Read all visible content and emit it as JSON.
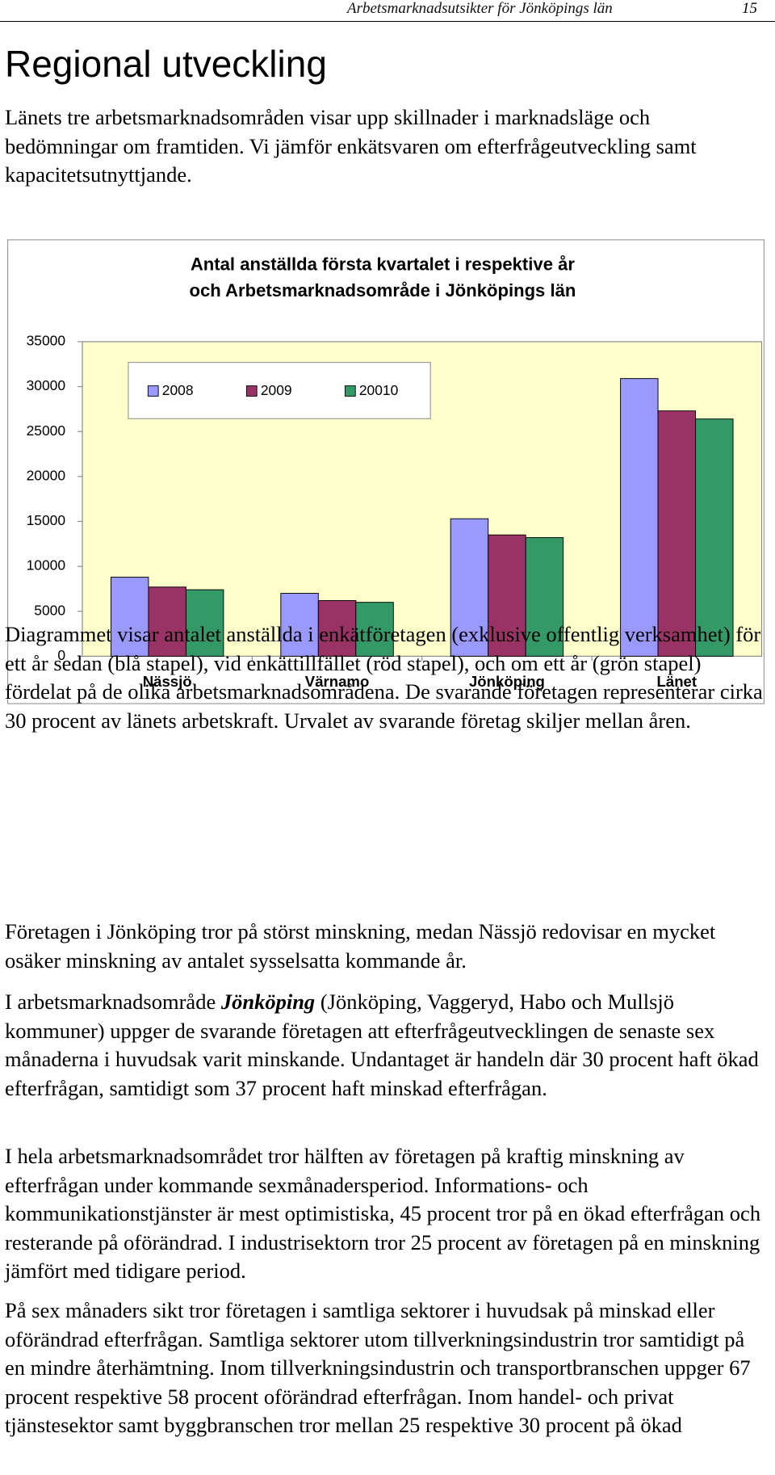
{
  "header": {
    "running_title": "Arbetsmarknadsutsikter för Jönköpings län",
    "page_number": "15"
  },
  "title": "Regional utveckling",
  "intro": "Länets tre arbetsmarknadsområden visar upp skillnader i marknadsläge och bedömningar om framtiden. Vi jämför enkätsvaren om efterfrågeutveckling samt kapacitetsutnyttjande.",
  "chart_data": {
    "type": "bar",
    "title": [
      "Antal anställda första kvartalet i respektive år",
      "och Arbetsmarknadsområde i Jönköpings län"
    ],
    "categories": [
      "Nässjö",
      "Värnamo",
      "Jönköping",
      "Länet"
    ],
    "series": [
      {
        "name": "2008",
        "color": "#9999ff",
        "values": [
          8800,
          7000,
          15300,
          30900
        ]
      },
      {
        "name": "2009",
        "color": "#993366",
        "values": [
          7700,
          6200,
          13500,
          27300
        ]
      },
      {
        "name": "20010",
        "color": "#339966",
        "values": [
          7400,
          6000,
          13200,
          26400
        ]
      }
    ],
    "ylim": [
      0,
      35000
    ],
    "yticks": [
      0,
      5000,
      10000,
      15000,
      20000,
      25000,
      30000,
      35000
    ],
    "grid": false,
    "legend": "top-left",
    "plot_background": "#ffffcc"
  },
  "paragraphs": [
    "Diagrammet visar antalet anställda i enkätföretagen (exklusive offentlig verksamhet) för ett år sedan (blå stapel), vid enkättillfället (röd stapel), och om ett år (grön stapel) fördelat på de olika arbetsmarknadsområdena. De svarande företagen representerar cirka 30 procent av länets arbetskraft. Urvalet av svarande företag skiljer mellan åren.",
    "Företagen i Jönköping tror på störst minskning, medan Nässjö redovisar en mycket osäker minskning av antalet sysselsatta kommande år.",
    {
      "before": "I arbetsmarknadsområde ",
      "emphasis": "Jönköping",
      "after": " (Jönköping, Vaggeryd, Habo och Mullsjö kommuner) uppger de svarande företagen att efterfrågeutvecklingen de senaste sex månaderna i huvudsak varit minskande. Undantaget är handeln där 30 procent haft ökad efterfrågan, samtidigt som 37 procent haft minskad efterfrågan."
    },
    "I hela arbetsmarknadsområdet tror hälften av företagen på kraftig minskning av efterfrågan under kommande sexmånadersperiod. Informations- och kommunikationstjänster är mest optimistiska, 45 procent tror på en ökad efterfrågan och resterande på oförändrad. I industrisektorn tror 25 procent av företagen på en minskning jämfört med tidigare period.",
    "På sex månaders sikt tror företagen i samtliga sektorer i huvudsak på minskad eller oförändrad efterfrågan. Samtliga sektorer utom tillverkningsindustrin tror samtidigt på en mindre återhämtning. Inom tillverkningsindustrin och transportbranschen uppger 67 procent respektive 58 procent oförändrad efterfrågan. Inom handel- och privat tjänstesektor samt byggbranschen tror mellan 25 respektive 30 procent på ökad"
  ]
}
